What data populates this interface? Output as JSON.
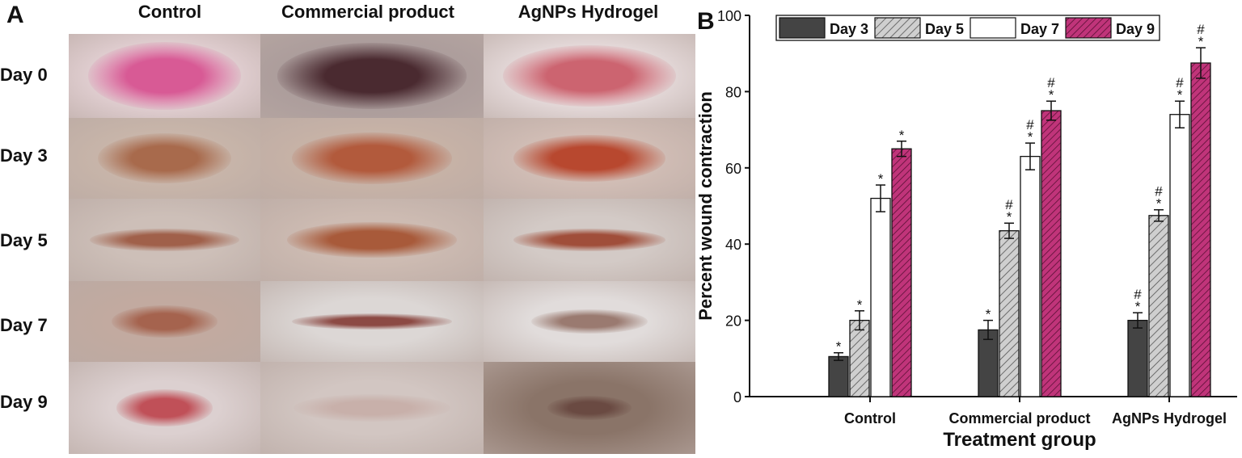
{
  "panel_a": {
    "letter": "A",
    "columns": [
      "Control",
      "Commercial product",
      "AgNPs Hydrogel"
    ],
    "rows": [
      "Day 0",
      "Day 3",
      "Day 5",
      "Day 7",
      "Day 9"
    ]
  },
  "panel_b": {
    "letter": "B"
  },
  "chart_data": {
    "type": "bar",
    "categories": [
      "Control",
      "Commercial product",
      "AgNPs Hydrogel"
    ],
    "xlabel": "Treatment group",
    "ylabel": "Percent wound contraction",
    "ylim": [
      0,
      100
    ],
    "yticks": [
      0,
      20,
      40,
      60,
      80,
      100
    ],
    "grid": false,
    "legend_position": "top",
    "series": [
      {
        "name": "Day 3",
        "color": "#444444",
        "pattern": "solid",
        "values": [
          10.5,
          17.5,
          20
        ],
        "errors": [
          1,
          2.5,
          2
        ],
        "marks": [
          "*",
          "*",
          "#\n*"
        ]
      },
      {
        "name": "Day 5",
        "color": "#cccccc",
        "pattern": "hatch",
        "values": [
          20,
          43.5,
          47.5
        ],
        "errors": [
          2.5,
          2,
          1.5
        ],
        "marks": [
          "*",
          "#\n*",
          "#\n*"
        ]
      },
      {
        "name": "Day 7",
        "color": "#ffffff",
        "pattern": "solid",
        "values": [
          52,
          63,
          74
        ],
        "errors": [
          3.5,
          3.5,
          3.5
        ],
        "marks": [
          "*",
          "#\n*",
          "#\n*"
        ]
      },
      {
        "name": "Day 9",
        "color": "#c0347a",
        "pattern": "hatch",
        "values": [
          65,
          75,
          87.5
        ],
        "errors": [
          2,
          2.5,
          4
        ],
        "marks": [
          "*",
          "#\n*",
          "#\n*"
        ]
      }
    ]
  }
}
